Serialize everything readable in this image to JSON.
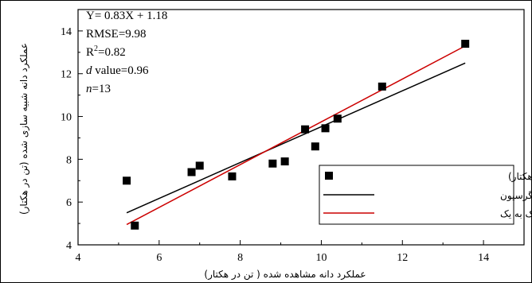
{
  "chart_data": {
    "type": "scatter",
    "xlabel": "عملکرد دانه مشاهده شده ( تن در هکتار)",
    "ylabel": "عملکرد دانه شبیه سازی شده (تن در هکتار)",
    "xlim": [
      4,
      15
    ],
    "ylim": [
      4,
      15
    ],
    "x_ticks": [
      4,
      6,
      8,
      10,
      12,
      14
    ],
    "y_ticks": [
      4,
      6,
      8,
      10,
      12,
      14
    ],
    "stats": {
      "equation": "Y= 0.83X + 1.18",
      "rmse": "RMSE=9.98",
      "r2_base": "R",
      "r2_sup": "2",
      "r2_value": "=0.82",
      "d_symbol": "d",
      "d_value": " value=0.96",
      "n_symbol": "n",
      "n_value": "=13"
    },
    "series": [
      {
        "name": "عملکرد دانه ( تن در هکتار)",
        "marker": "square",
        "color": "#000000",
        "points": [
          [
            5.2,
            7.0
          ],
          [
            5.4,
            4.9
          ],
          [
            6.8,
            7.4
          ],
          [
            7.0,
            7.7
          ],
          [
            7.8,
            7.2
          ],
          [
            8.8,
            7.8
          ],
          [
            9.1,
            7.9
          ],
          [
            9.6,
            9.4
          ],
          [
            9.85,
            8.6
          ],
          [
            10.1,
            9.45
          ],
          [
            10.4,
            9.9
          ],
          [
            11.5,
            11.4
          ],
          [
            13.55,
            13.4
          ]
        ]
      },
      {
        "name": "خط رگرسیون",
        "type": "line",
        "color": "#000000",
        "x": [
          5.2,
          13.55
        ],
        "y": [
          5.5,
          12.5
        ]
      },
      {
        "name": "خط یک به یک",
        "type": "line",
        "color": "#cc0000",
        "x": [
          5.2,
          13.55
        ],
        "y": [
          4.95,
          13.3
        ]
      }
    ],
    "legend_position": "lower-right",
    "grid": false
  }
}
